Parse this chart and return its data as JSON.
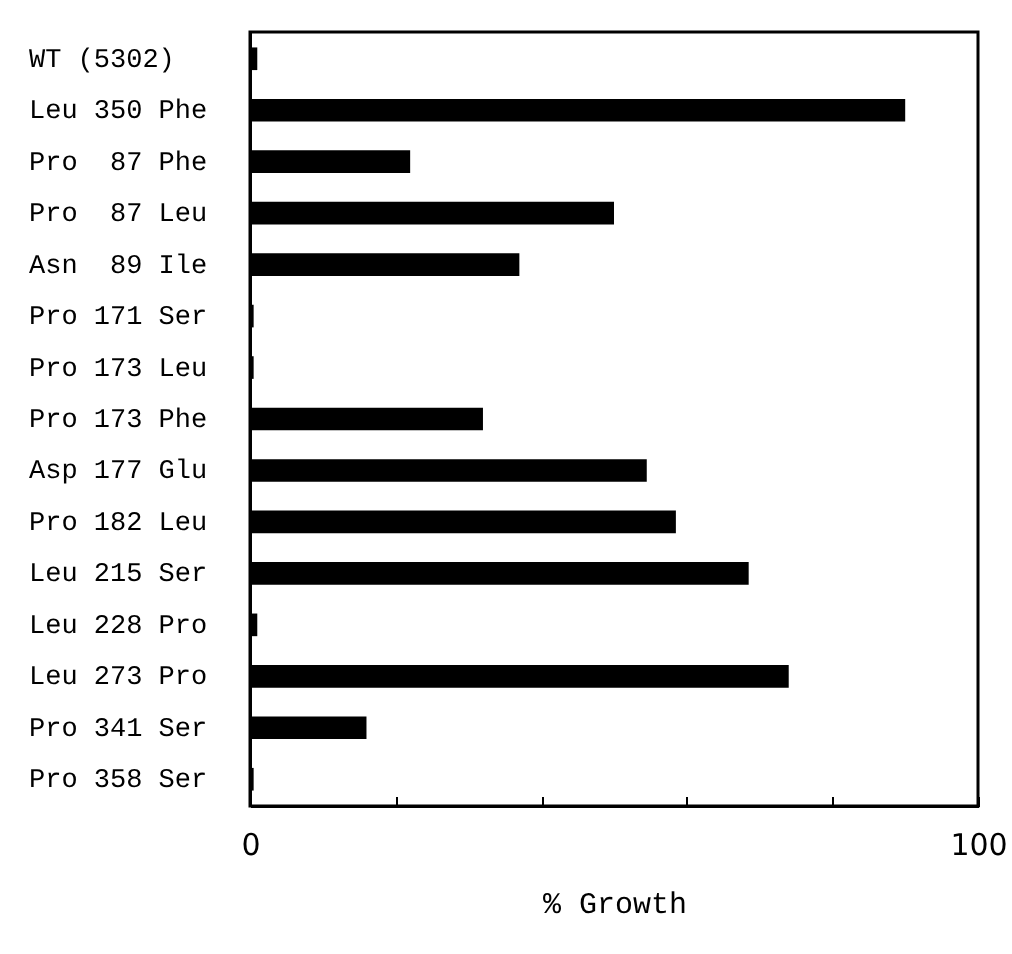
{
  "chart_data": {
    "type": "bar",
    "orientation": "horizontal",
    "xlabel": "% Growth",
    "categories": [
      "WT (5302)",
      "Leu 350 Phe",
      "Pro  87 Phe",
      "Pro  87 Leu",
      "Asn  89 Ile",
      "Pro 171 Ser",
      "Pro 173 Leu",
      "Pro 173 Phe",
      "Asp 177 Glu",
      "Pro 182 Leu",
      "Leu 215 Ser",
      "Leu 228 Pro",
      "Leu 273 Pro",
      "Pro 341 Ser",
      "Pro 358 Ser"
    ],
    "values": [
      1,
      90,
      22,
      50,
      37,
      0.5,
      0.5,
      32,
      54.5,
      58.5,
      68.5,
      1,
      74,
      16,
      0.5
    ],
    "color": "#000000",
    "xlim": [
      0,
      100
    ],
    "xticks": [
      0,
      {
        "value": 20,
        "label": null
      },
      {
        "value": 40,
        "label": null
      },
      {
        "value": 60,
        "label": null
      },
      {
        "value": 80,
        "label": null
      },
      100
    ],
    "grid": false
  }
}
